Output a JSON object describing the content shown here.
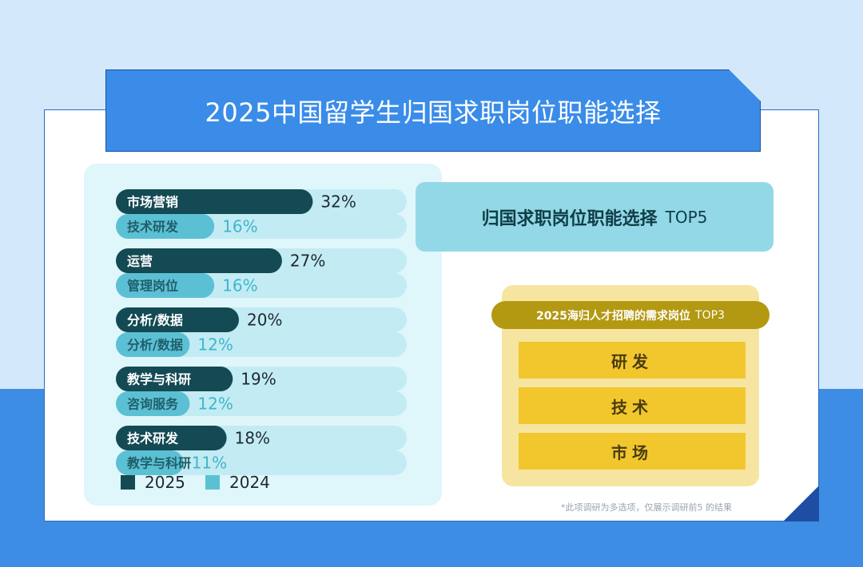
{
  "title": "2025中国留学生归国求职岗位职能选择",
  "top5": {
    "title": "归国求职岗位职能选择",
    "suffix": "TOP5"
  },
  "top3": {
    "title": "2025海归人才招聘的需求岗位",
    "suffix": "TOP3",
    "items": [
      "研发",
      "技术",
      "市场"
    ]
  },
  "note": "*此项调研为多选项，仅展示调研前5 的结果",
  "colors": {
    "series_2025": "#134a54",
    "series_2024": "#5cc0d4",
    "track": "#c3ebf3",
    "label_2024_text": "#1f5e69",
    "value_2024_text": "#3eb6cd"
  },
  "chart_data": {
    "type": "bar",
    "orientation": "horizontal",
    "legend": {
      "placement": "bottom-left",
      "labels": [
        "2025",
        "2024"
      ]
    },
    "xlim": [
      0,
      40
    ],
    "rows": [
      {
        "year": "2025",
        "label": "市场营销",
        "value": 32,
        "value_label": "32%"
      },
      {
        "year": "2024",
        "label": "技术研发",
        "value": 16,
        "value_label": "16%"
      },
      {
        "year": "2025",
        "label": "运营",
        "value": 27,
        "value_label": "27%"
      },
      {
        "year": "2024",
        "label": "管理岗位",
        "value": 16,
        "value_label": "16%"
      },
      {
        "year": "2025",
        "label": "分析/数据",
        "value": 20,
        "value_label": "20%"
      },
      {
        "year": "2024",
        "label": "分析/数据",
        "value": 12,
        "value_label": "12%"
      },
      {
        "year": "2025",
        "label": "教学与科研",
        "value": 19,
        "value_label": "19%"
      },
      {
        "year": "2024",
        "label": "咨询服务",
        "value": 12,
        "value_label": "12%"
      },
      {
        "year": "2025",
        "label": "技术研发",
        "value": 18,
        "value_label": "18%"
      },
      {
        "year": "2024",
        "label": "教学与科研",
        "value": 11,
        "value_label": "11%"
      }
    ]
  }
}
